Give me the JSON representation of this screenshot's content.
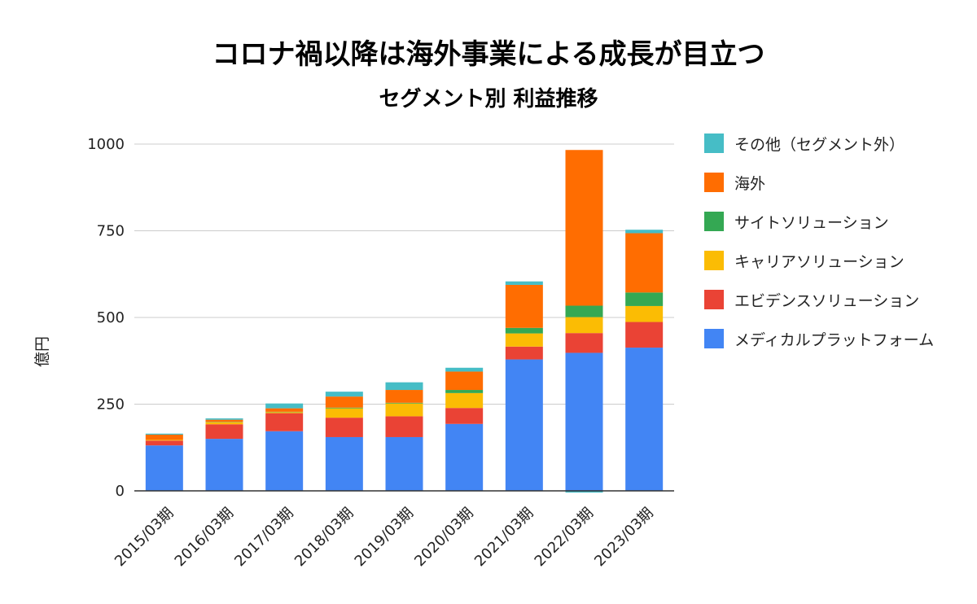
{
  "chart_data": {
    "type": "bar",
    "stacked": true,
    "title": "コロナ禍以降は海外事業による成長が目立つ",
    "subtitle": "セグメント別 利益推移",
    "xlabel": "",
    "ylabel": "億円",
    "ylim": [
      0,
      1000
    ],
    "yticks": [
      "0",
      "250",
      "500",
      "750",
      "1000"
    ],
    "ytick_values": [
      0,
      250,
      500,
      750,
      1000
    ],
    "grid": true,
    "legend_position": "right",
    "categories": [
      "2015/03期",
      "2016/03期",
      "2017/03期",
      "2018/03期",
      "2019/03期",
      "2020/03期",
      "2021/03期",
      "2022/03期",
      "2023/03期"
    ],
    "series": [
      {
        "name": "メディカルプラットフォーム",
        "color": "#4285F4",
        "values": [
          131,
          150,
          172,
          155,
          155,
          193,
          379,
          398,
          413
        ]
      },
      {
        "name": "エビデンスソリューション",
        "color": "#EA4335",
        "values": [
          14,
          42,
          52,
          56,
          60,
          46,
          37,
          57,
          74
        ]
      },
      {
        "name": "キャリアソリューション",
        "color": "#FBBC04",
        "values": [
          2,
          6,
          3,
          27,
          37,
          43,
          38,
          46,
          46
        ]
      },
      {
        "name": "サイトソリューション",
        "color": "#34A853",
        "values": [
          0,
          1,
          1,
          2,
          2,
          9,
          16,
          33,
          39
        ]
      },
      {
        "name": "海外",
        "color": "#FF6D01",
        "values": [
          15,
          6,
          10,
          32,
          37,
          53,
          124,
          449,
          171
        ]
      },
      {
        "name": "その他（セグメント外）",
        "color": "#46BDC6",
        "values": [
          3,
          4,
          14,
          14,
          22,
          11,
          10,
          -5,
          10
        ]
      }
    ]
  }
}
